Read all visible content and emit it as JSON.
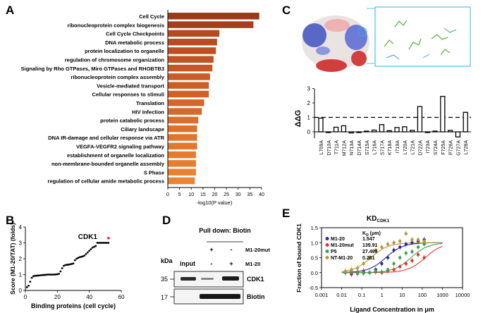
{
  "panel_labels": {
    "a": "A",
    "b": "B",
    "c": "C",
    "d": "D",
    "e": "E"
  },
  "chart_data": [
    {
      "panel": "A",
      "type": "bar",
      "orientation": "horizontal",
      "xlabel": "-log10(P value)",
      "xlim": [
        0,
        40
      ],
      "xticks": [
        0,
        5,
        10,
        15,
        20,
        25,
        30,
        35,
        40
      ],
      "categories": [
        "Cell Cycle",
        "ribonucleoprotein complex biogenesis",
        "Cell Cycle Checkpoints",
        "DNA metabolic process",
        "protein localization to organelle",
        "regulation of chromosome organization",
        "Signaling by Rho GTPases, Miro GTPases and RHOBTB3",
        "ribonucleoprotein complex assembly",
        "Vesicle-mediated transport",
        "Cellular responses to stimuli",
        "Translation",
        "HIV Infection",
        "protein catabolic process",
        "Ciliary landscape",
        "DNA IR-damage and cellular response via ATR",
        "VEGFA-VEGFR2 signaling pathway",
        "establishment of organelle localization",
        "non-membrane-bounded organelle assembly",
        "S Phase",
        "regulation of cellular amide metabolic process"
      ],
      "values": [
        39,
        36.5,
        22,
        21,
        20.5,
        19.5,
        19,
        18,
        17.5,
        17.5,
        15.5,
        14.5,
        13,
        12.5,
        12.5,
        12.5,
        12,
        12,
        12,
        11.5
      ],
      "colors": [
        "#9c3a1c",
        "#a23f1e",
        "#b44a20",
        "#b84d21",
        "#bc5022",
        "#c05323",
        "#c55724",
        "#c95b25",
        "#cc5e26",
        "#cf6127",
        "#d46628",
        "#d76a29",
        "#db6e2b",
        "#de722c",
        "#e0752d",
        "#e2782e",
        "#e47b2f",
        "#e67e30",
        "#e88131",
        "#ea8432"
      ]
    },
    {
      "panel": "B",
      "type": "scatter",
      "xlabel": "Binding proteins (cell cycle)",
      "ylabel": "Score (M1-20/TAT) (folds)",
      "xlim": [
        0,
        60
      ],
      "ylim": [
        0,
        4
      ],
      "xticks": [
        0,
        20,
        40,
        60
      ],
      "yticks": [
        0,
        1,
        2,
        3,
        4
      ],
      "annotation": "CDK1",
      "x": [
        1,
        2,
        3,
        4,
        5,
        6,
        7,
        8,
        9,
        10,
        11,
        12,
        13,
        14,
        15,
        16,
        17,
        18,
        19,
        20,
        21,
        22,
        23,
        24,
        25,
        26,
        27,
        28,
        29,
        30,
        31,
        32,
        33,
        34,
        35,
        36,
        37,
        38,
        39,
        40,
        41,
        42,
        43,
        44,
        45,
        46,
        47,
        48,
        49,
        50,
        51,
        52
      ],
      "y": [
        0.2,
        0.3,
        0.55,
        0.8,
        0.9,
        0.92,
        0.93,
        0.94,
        0.95,
        0.96,
        0.97,
        0.98,
        0.99,
        1.0,
        1.0,
        1.0,
        1.0,
        1.0,
        1.01,
        1.02,
        1.05,
        1.2,
        1.4,
        1.55,
        1.6,
        1.62,
        1.63,
        1.65,
        1.67,
        1.7,
        1.9,
        2.0,
        2.05,
        2.1,
        2.12,
        2.15,
        2.2,
        2.3,
        2.4,
        2.5,
        2.6,
        2.7,
        2.75,
        2.8,
        3.0,
        3.0,
        3.0,
        3.0,
        3.0,
        3.0,
        3.0,
        3.0
      ],
      "highlight": {
        "x": 52,
        "y": 3.3,
        "color": "#e41a1c"
      }
    },
    {
      "panel": "C",
      "type": "bar",
      "ylabel": "ΔΔG",
      "ylim": [
        -0.6,
        3
      ],
      "yticks": [
        0,
        1,
        2,
        3
      ],
      "threshold": 1,
      "categories": [
        "L709A",
        "D710A",
        "T711A",
        "M712A",
        "N713A",
        "D714A",
        "S715A",
        "L716A",
        "S717A",
        "K718A",
        "I719A",
        "L720A",
        "L721A",
        "D722A",
        "I723A",
        "S724A",
        "F725A",
        "P726A",
        "G727A",
        "L728A"
      ],
      "values": [
        0.95,
        -0.05,
        0.32,
        0.42,
        -0.08,
        -0.05,
        0.05,
        0.12,
        0.5,
        0.08,
        0.3,
        0.35,
        0.1,
        1.75,
        -0.05,
        0.05,
        2.45,
        0.1,
        -0.35,
        1.35
      ]
    },
    {
      "panel": "D",
      "type": "table",
      "header": "Pull down: Biotin",
      "kda_label": "kDa",
      "input_label": "input",
      "rows": [
        {
          "label": "M1-20mut",
          "marks": [
            "+",
            "-"
          ]
        },
        {
          "label": "M1-20",
          "marks": [
            "-",
            "+"
          ]
        }
      ],
      "bands": [
        {
          "kda": "35",
          "name": "CDK1"
        },
        {
          "kda": "17",
          "name": "Biotin"
        }
      ]
    },
    {
      "panel": "E",
      "type": "scatter",
      "title": "KD",
      "title_sub": "CDK1",
      "xscale": "log",
      "xlabel": "Ligand Concentration in μm",
      "ylabel": "Fraction of bound CDK1",
      "xlim": [
        0.001,
        10000
      ],
      "ylim": [
        -0.5,
        1.5
      ],
      "xticks": [
        "0.001",
        "0.01",
        "0.1",
        "1",
        "10",
        "100",
        "1000",
        "10000"
      ],
      "yticks": [
        "-0.5",
        "0.0",
        "0.5",
        "1.0",
        "1.5"
      ],
      "legend_header": "K_D (μm)",
      "legend_header_k": "K",
      "legend_header_sub": "D",
      "legend_header_rest": " (μm)",
      "series": [
        {
          "name": "M1-20",
          "kd": "1.547",
          "color": "#2b2b9a",
          "x": [
            0.0153,
            0.0305,
            0.061,
            0.122,
            0.244,
            0.488,
            0.977,
            1.95,
            3.9,
            7.8,
            15.6,
            31.2,
            62.5,
            125
          ],
          "y": [
            0.0,
            -0.05,
            0.02,
            0.05,
            0.0,
            0.1,
            0.3,
            0.5,
            0.75,
            0.85,
            0.95,
            1.0,
            1.05,
            1.1
          ]
        },
        {
          "name": "M1-20mut",
          "kd": "139.91",
          "color": "#e0382d",
          "x": [
            0.0153,
            0.0305,
            0.061,
            0.122,
            0.244,
            0.488,
            0.977,
            1.95,
            3.9,
            7.8,
            15.6,
            31.2,
            62.5,
            125
          ],
          "y": [
            0.0,
            0.0,
            -0.03,
            0.02,
            0.0,
            0.02,
            0.0,
            0.05,
            0.1,
            0.2,
            0.3,
            0.4,
            0.6,
            0.5
          ]
        },
        {
          "name": "P5",
          "kd": "27.499",
          "color": "#3fa05a",
          "x": [
            0.0153,
            0.0305,
            0.061,
            0.122,
            0.244,
            0.488,
            0.977,
            1.95,
            3.9,
            7.8,
            15.6,
            31.2,
            62.5,
            125
          ],
          "y": [
            0.0,
            0.05,
            0.0,
            -0.02,
            0.0,
            0.05,
            0.02,
            0.1,
            0.3,
            0.5,
            0.65,
            0.7,
            0.85,
            0.95
          ]
        },
        {
          "name": "NT-M1-20",
          "kd": "0.281",
          "color": "#b8963a",
          "x": [
            0.0153,
            0.0305,
            0.061,
            0.122,
            0.244,
            0.488,
            0.977,
            1.95,
            3.9,
            7.8,
            15.6,
            31.2,
            62.5,
            125
          ],
          "y": [
            0.05,
            0.1,
            0.15,
            0.3,
            0.5,
            0.75,
            0.85,
            0.95,
            1.0,
            1.05,
            1.3,
            1.1,
            1.1,
            1.05
          ]
        }
      ]
    }
  ]
}
